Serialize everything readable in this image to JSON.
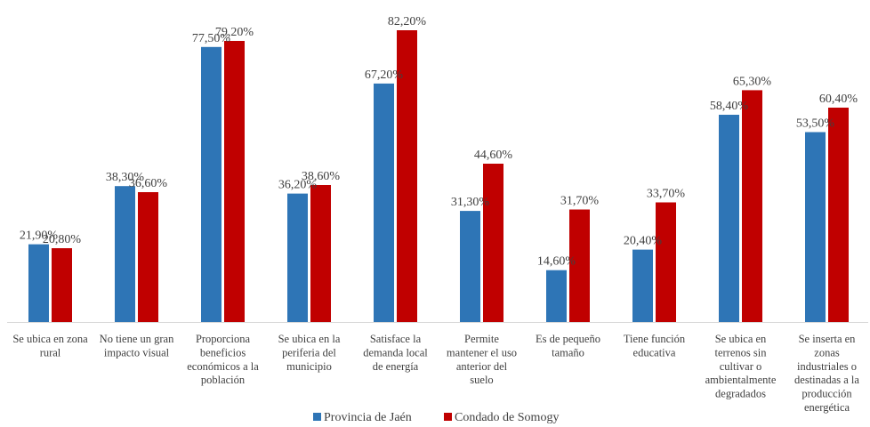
{
  "chart_data": {
    "type": "bar",
    "categories": [
      [
        "Se ubica en zona",
        "rural"
      ],
      [
        "No tiene un gran",
        "impacto visual"
      ],
      [
        "Proporciona",
        "beneficios",
        "económicos a la",
        "población"
      ],
      [
        "Se ubica en la",
        "periferia del",
        "municipio"
      ],
      [
        "Satisface la",
        "demanda local",
        "de energía"
      ],
      [
        "Permite",
        "mantener el uso",
        "anterior del",
        "suelo"
      ],
      [
        "Es de pequeño",
        "tamaño"
      ],
      [
        "Tiene función",
        "educativa"
      ],
      [
        "Se ubica en",
        "terrenos sin",
        "cultivar o",
        "ambientalmente",
        "degradados"
      ],
      [
        "Se inserta en",
        "zonas",
        "industriales o",
        "destinadas a la",
        "producción",
        "energética"
      ]
    ],
    "series": [
      {
        "name": "Provincia de Jaén",
        "color": "#2e75b6",
        "values": [
          21.9,
          38.3,
          77.5,
          36.2,
          67.2,
          31.3,
          14.6,
          20.4,
          58.4,
          53.5
        ],
        "labels": [
          "21,90%",
          "38,30%",
          "77,50%",
          "36,20%",
          "67,20%",
          "31,30%",
          "14,60%",
          "20,40%",
          "58,40%",
          "53,50%"
        ]
      },
      {
        "name": "Condado de Somogy",
        "color": "#c00000",
        "values": [
          20.8,
          36.6,
          79.2,
          38.6,
          82.2,
          44.6,
          31.7,
          33.7,
          65.3,
          60.4
        ],
        "labels": [
          "20,80%",
          "36,60%",
          "79,20%",
          "38,60%",
          "82,20%",
          "44,60%",
          "31,70%",
          "33,70%",
          "65,30%",
          "60,40%"
        ]
      }
    ],
    "ylim": [
      0,
      90
    ],
    "grid": false,
    "legend_position": "bottom"
  }
}
